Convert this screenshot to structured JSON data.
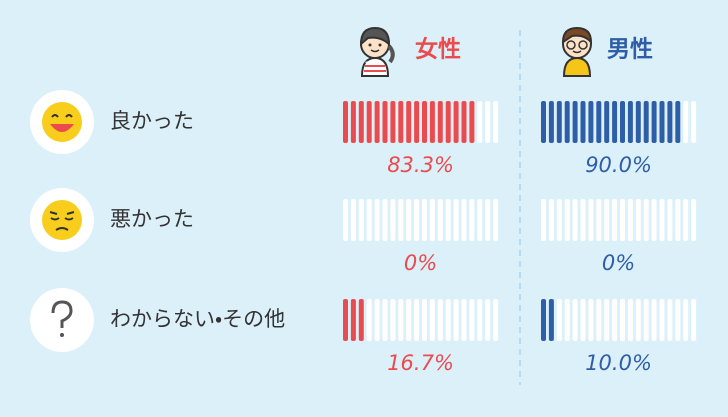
{
  "chart_data": {
    "type": "tally",
    "categories": [
      "良かった",
      "悪かった",
      "わからない・その他"
    ],
    "xlim": [
      0,
      100
    ],
    "series": [
      {
        "name": "女性",
        "color": "#e94b4f",
        "values": [
          83.3,
          0,
          16.7
        ],
        "value_labels": [
          "83.3%",
          "0%",
          "16.7%"
        ]
      },
      {
        "name": "男性",
        "color": "#2f5ea8",
        "values": [
          90.0,
          0,
          10.0
        ],
        "value_labels": [
          "90.0%",
          "0%",
          "10.0%"
        ]
      }
    ]
  }
}
